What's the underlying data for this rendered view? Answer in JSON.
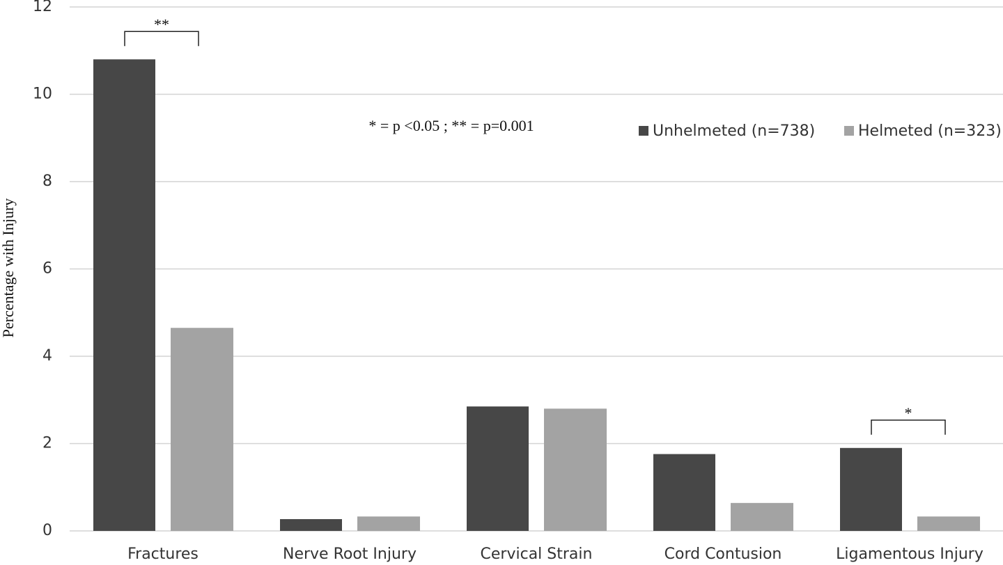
{
  "chart_data": {
    "type": "bar",
    "y_label": "Percentage with Injury",
    "categories": [
      "Fractures",
      "Nerve Root Injury",
      "Cervical Strain",
      "Cord Contusion",
      "Ligamentous Injury"
    ],
    "series": [
      {
        "name": "Unhelmeted (n=738)",
        "color": "#474747",
        "values": [
          10.8,
          0.27,
          2.85,
          1.76,
          1.9
        ]
      },
      {
        "name": "Helmeted (n=323)",
        "color": "#a3a3a3",
        "values": [
          4.65,
          0.33,
          2.8,
          0.64,
          0.33
        ]
      }
    ],
    "ylim": [
      0,
      12
    ],
    "yticks": [
      0,
      2,
      4,
      6,
      8,
      10,
      12
    ],
    "grid": true,
    "legend": "top-right",
    "annotations": [
      "* = p <0.05 ; ** = p=0.001"
    ],
    "significance": [
      {
        "category": "Fractures",
        "label": "**"
      },
      {
        "category": "Ligamentous Injury",
        "label": "*"
      }
    ]
  }
}
